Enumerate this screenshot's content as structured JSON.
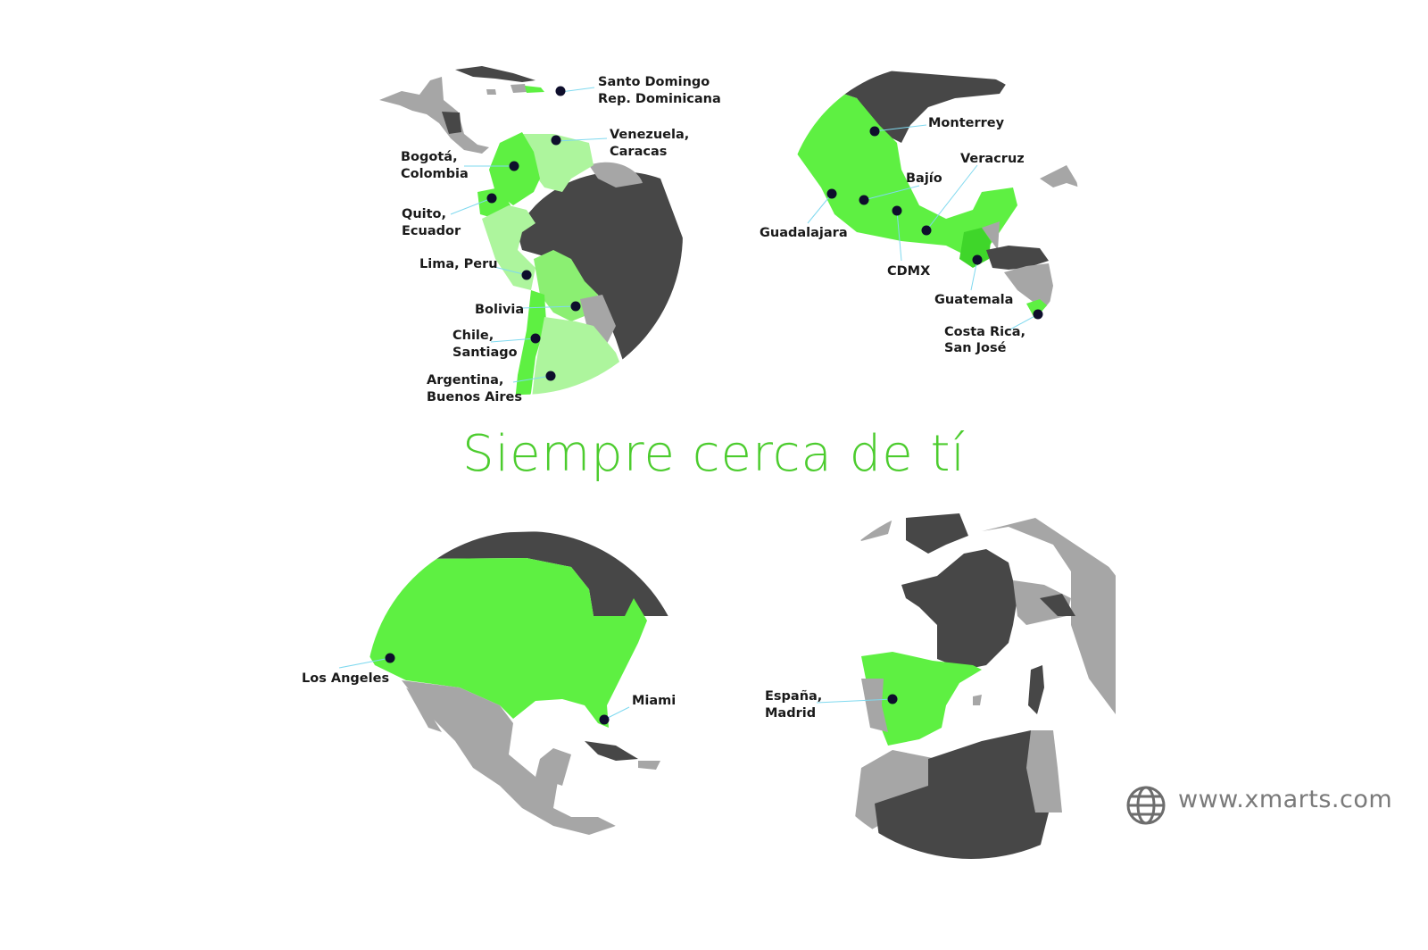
{
  "tagline": "Siempre cerca de tí",
  "website": "www.xmarts.com",
  "icons": {
    "website": "globe-icon"
  },
  "colors": {
    "brand_green": "#5ef042",
    "light_green": "#adf59d",
    "tagline_green": "#4ccc2e",
    "dark_land": "#474747",
    "gray_land": "#a6a6a6",
    "pin": "#0e0e2c"
  },
  "maps": {
    "south_america": {
      "santo_domingo": [
        "Santo Domingo",
        "Rep. Dominicana"
      ],
      "venezuela": [
        "Venezuela,",
        "Caracas"
      ],
      "bogota": [
        "Bogotá,",
        "Colombia"
      ],
      "quito": [
        "Quito,",
        "Ecuador"
      ],
      "lima": "Lima, Peru",
      "bolivia": "Bolivia",
      "chile": [
        "Chile,",
        "Santiago"
      ],
      "argentina": [
        "Argentina,",
        "Buenos Aires"
      ]
    },
    "mexico": {
      "monterrey": "Monterrey",
      "veracruz": "Veracruz",
      "bajio": "Bajío",
      "guadalajara": "Guadalajara",
      "cdmx": "CDMX",
      "guatemala": "Guatemala",
      "costa_rica": [
        "Costa Rica,",
        "San José"
      ]
    },
    "usa": {
      "los_angeles": "Los Angeles",
      "miami": "Miami"
    },
    "spain": {
      "madrid": [
        "España,",
        "Madrid"
      ]
    }
  }
}
